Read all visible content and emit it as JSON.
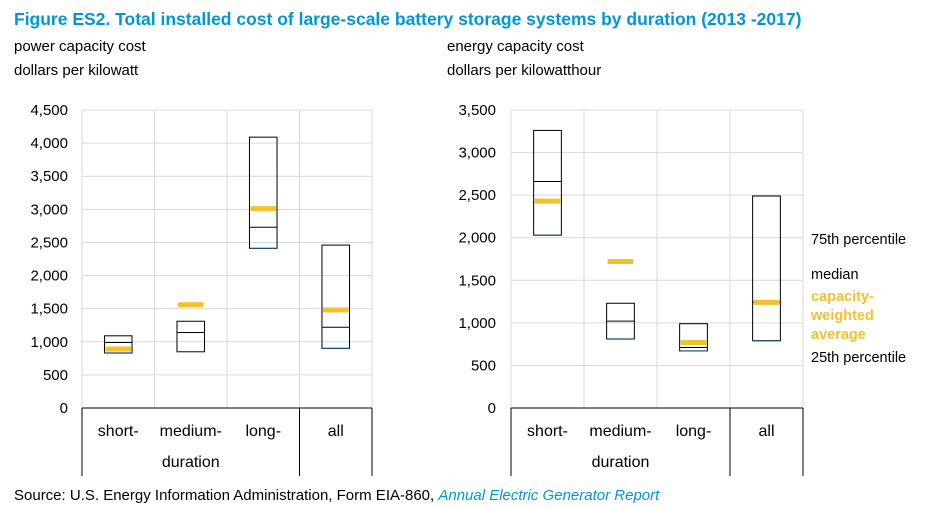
{
  "figure": {
    "title": "Figure ES2. Total installed cost of large-scale battery storage systems by duration (2013 -2017)",
    "source_prefix": "Source: U.S. Energy Information Administration, Form EIA-860, ",
    "source_link": "Annual Electric Generator Report"
  },
  "colors": {
    "title": "#0096d7",
    "weighted_average": "#f2c12e",
    "box": "#000000",
    "grid": "#d9d9d9",
    "base_line": "#1f4e79"
  },
  "legend": {
    "p75": "75th percentile",
    "median": "median",
    "weighted_line1": "capacity-",
    "weighted_line2": "weighted",
    "weighted_line3": "average",
    "p25": "25th percentile"
  },
  "chart_data": [
    {
      "type": "box",
      "title_line1": "power capacity cost",
      "title_line2": "dollars per kilowatt",
      "ylim": [
        0,
        4500
      ],
      "yticks": [
        0,
        500,
        1000,
        1500,
        2000,
        2500,
        3000,
        3500,
        4000,
        4500
      ],
      "ytick_labels": [
        "0",
        "500",
        "1,000",
        "1,500",
        "2,000",
        "2,500",
        "3,000",
        "3,500",
        "4,000",
        "4,500"
      ],
      "categories": [
        "short-",
        "medium-",
        "long-",
        "all"
      ],
      "group_label": "duration",
      "series": [
        {
          "name": "short-",
          "p25": 830,
          "median": 990,
          "p75": 1090,
          "weighted_average": 890
        },
        {
          "name": "medium-",
          "p25": 850,
          "median": 1140,
          "p75": 1310,
          "weighted_average": 1560
        },
        {
          "name": "long-",
          "p25": 2410,
          "median": 2730,
          "p75": 4090,
          "weighted_average": 3010
        },
        {
          "name": "all",
          "p25": 900,
          "median": 1220,
          "p75": 2460,
          "weighted_average": 1480
        }
      ]
    },
    {
      "type": "box",
      "title_line1": "energy capacity cost",
      "title_line2": "dollars per kilowatthour",
      "ylim": [
        0,
        3500
      ],
      "yticks": [
        0,
        500,
        1000,
        1500,
        2000,
        2500,
        3000,
        3500
      ],
      "ytick_labels": [
        "0",
        "500",
        "1,000",
        "1,500",
        "2,000",
        "2,500",
        "3,000",
        "3,500"
      ],
      "categories": [
        "short-",
        "medium-",
        "long-",
        "all"
      ],
      "group_label": "duration",
      "series": [
        {
          "name": "short-",
          "p25": 2030,
          "median": 2660,
          "p75": 3260,
          "weighted_average": 2430
        },
        {
          "name": "medium-",
          "p25": 810,
          "median": 1020,
          "p75": 1230,
          "weighted_average": 1720
        },
        {
          "name": "long-",
          "p25": 670,
          "median": 710,
          "p75": 990,
          "weighted_average": 770
        },
        {
          "name": "all",
          "p25": 790,
          "median": 1240,
          "p75": 2490,
          "weighted_average": 1240
        }
      ]
    }
  ]
}
